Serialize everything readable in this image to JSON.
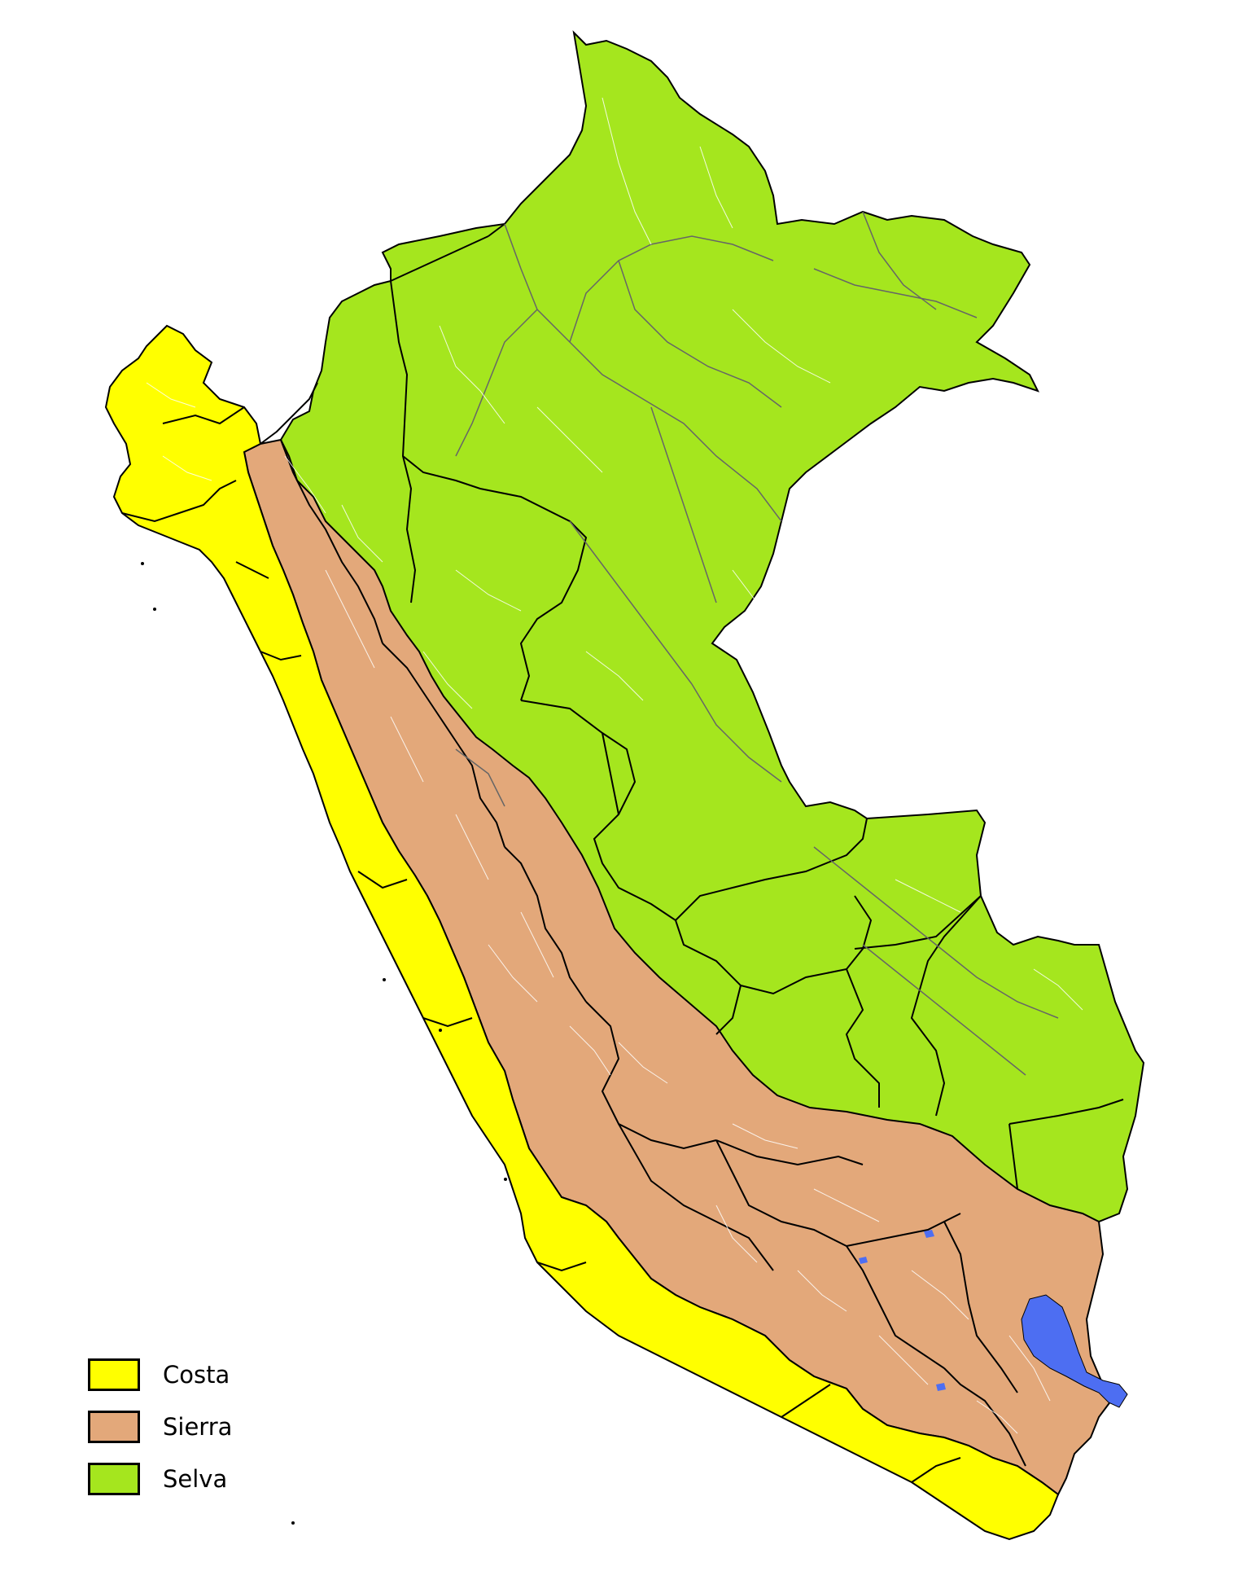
{
  "map": {
    "regions": [
      {
        "id": "costa",
        "label": "Costa",
        "color": "#ffff00"
      },
      {
        "id": "sierra",
        "label": "Sierra",
        "color": "#e3a87a"
      },
      {
        "id": "selva",
        "label": "Selva",
        "color": "#a5e61e"
      }
    ],
    "lake_color": "#4d6ef2",
    "boundary_color": "#000000",
    "subdivision_line_color": "#ffffff",
    "province_line_color": "#666666"
  },
  "legend": {
    "items": [
      {
        "label": "Costa",
        "color": "#ffff00"
      },
      {
        "label": "Sierra",
        "color": "#e3a87a"
      },
      {
        "label": "Selva",
        "color": "#a5e61e"
      }
    ]
  }
}
